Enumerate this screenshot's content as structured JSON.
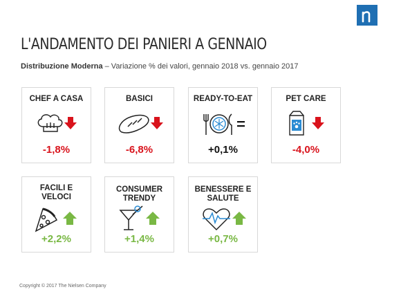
{
  "title": "L'ANDAMENTO DEI PANIERI A GENNAIO",
  "subtitle": {
    "bold": "Distribuzione  Moderna",
    "rest": " – Variazione % dei valori, gennaio 2018 vs. gennaio 2017"
  },
  "colors": {
    "down": "#d9131c",
    "up": "#79b844",
    "neutral": "#111111",
    "brand": "#1f6fb3"
  },
  "cards": [
    {
      "label": "CHEF A CASA",
      "value": "-1,8%",
      "trend": "down",
      "icon": "chef-hat-icon"
    },
    {
      "label": "BASICI",
      "value": "-6,8%",
      "trend": "down",
      "icon": "bread-icon"
    },
    {
      "label": "READY-TO-EAT",
      "value": "+0,1%",
      "trend": "equal",
      "icon": "cutlery-plate-icon"
    },
    {
      "label": "PET CARE",
      "value": "-4,0%",
      "trend": "down",
      "icon": "pet-food-icon"
    },
    {
      "label": "FACILI E VELOCI",
      "value": "+2,2%",
      "trend": "up",
      "icon": "pizza-slice-icon"
    },
    {
      "label": "CONSUMER TRENDY",
      "value": "+1,4%",
      "trend": "up",
      "icon": "cocktail-icon"
    },
    {
      "label": "BENESSERE E SALUTE",
      "value": "+0,7%",
      "trend": "up",
      "icon": "heart-pulse-icon"
    }
  ],
  "footer": "Copyright © 2017 The Nielsen Company"
}
